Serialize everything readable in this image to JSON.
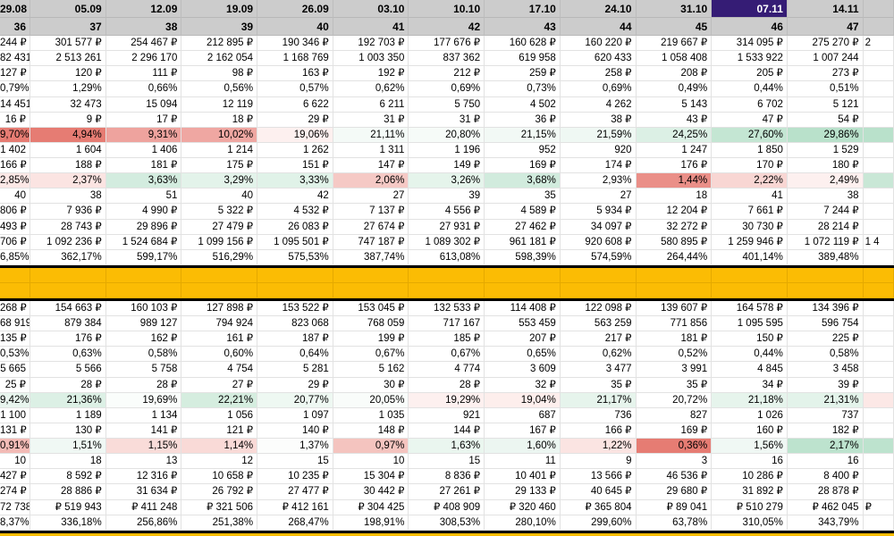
{
  "sheet": {
    "dates": [
      "29.08",
      "05.09",
      "12.09",
      "19.09",
      "26.09",
      "03.10",
      "10.10",
      "17.10",
      "24.10",
      "31.10",
      "07.11",
      "14.11",
      ""
    ],
    "weeks": [
      "36",
      "37",
      "38",
      "39",
      "40",
      "41",
      "42",
      "43",
      "44",
      "45",
      "46",
      "47",
      ""
    ],
    "selected_date_index": 10,
    "selected_color": "#351c75",
    "highlight_color": "#fbbc04",
    "top_rows": [
      [
        "244 ₽",
        "301 577 ₽",
        "254 467 ₽",
        "212 895 ₽",
        "190 346 ₽",
        "192 703 ₽",
        "177 676 ₽",
        "160 628 ₽",
        "160 220 ₽",
        "219 667 ₽",
        "314 095 ₽",
        "275 270 ₽",
        "2"
      ],
      [
        "82 431",
        "2 513 261",
        "2 296 170",
        "2 162 054",
        "1 168 769",
        "1 003 350",
        "837 362",
        "619 958",
        "620 433",
        "1 058 408",
        "1 533 922",
        "1 007 244",
        ""
      ],
      [
        "127 ₽",
        "120 ₽",
        "111 ₽",
        "98 ₽",
        "163 ₽",
        "192 ₽",
        "212 ₽",
        "259 ₽",
        "258 ₽",
        "208 ₽",
        "205 ₽",
        "273 ₽",
        ""
      ],
      [
        "0,79%",
        "1,29%",
        "0,66%",
        "0,56%",
        "0,57%",
        "0,62%",
        "0,69%",
        "0,73%",
        "0,69%",
        "0,49%",
        "0,44%",
        "0,51%",
        ""
      ],
      [
        "14 451",
        "32 473",
        "15 094",
        "12 119",
        "6 622",
        "6 211",
        "5 750",
        "4 502",
        "4 262",
        "5 143",
        "6 702",
        "5 121",
        ""
      ],
      [
        "16 ₽",
        "9 ₽",
        "17 ₽",
        "18 ₽",
        "29 ₽",
        "31 ₽",
        "31 ₽",
        "36 ₽",
        "38 ₽",
        "43 ₽",
        "47 ₽",
        "54 ₽",
        ""
      ],
      [
        "9,70%",
        "4,94%",
        "9,31%",
        "10,02%",
        "19,06%",
        "21,11%",
        "20,80%",
        "21,15%",
        "21,59%",
        "24,25%",
        "27,60%",
        "29,86%",
        ""
      ],
      [
        "1 402",
        "1 604",
        "1 406",
        "1 214",
        "1 262",
        "1 311",
        "1 196",
        "952",
        "920",
        "1 247",
        "1 850",
        "1 529",
        ""
      ],
      [
        "166 ₽",
        "188 ₽",
        "181 ₽",
        "175 ₽",
        "151 ₽",
        "147 ₽",
        "149 ₽",
        "169 ₽",
        "174 ₽",
        "176 ₽",
        "170 ₽",
        "180 ₽",
        ""
      ],
      [
        "2,85%",
        "2,37%",
        "3,63%",
        "3,29%",
        "3,33%",
        "2,06%",
        "3,26%",
        "3,68%",
        "2,93%",
        "1,44%",
        "2,22%",
        "2,49%",
        ""
      ],
      [
        "40",
        "38",
        "51",
        "40",
        "42",
        "27",
        "39",
        "35",
        "27",
        "18",
        "41",
        "38",
        ""
      ],
      [
        "806 ₽",
        "7 936 ₽",
        "4 990 ₽",
        "5 322 ₽",
        "4 532 ₽",
        "7 137 ₽",
        "4 556 ₽",
        "4 589 ₽",
        "5 934 ₽",
        "12 204 ₽",
        "7 661 ₽",
        "7 244 ₽",
        ""
      ],
      [
        "493 ₽",
        "28 743 ₽",
        "29 896 ₽",
        "27 479 ₽",
        "26 083 ₽",
        "27 674 ₽",
        "27 931 ₽",
        "27 462 ₽",
        "34 097 ₽",
        "32 272 ₽",
        "30 730 ₽",
        "28 214 ₽",
        ""
      ],
      [
        "706 ₽",
        "1 092 236 ₽",
        "1 524 684 ₽",
        "1 099 156 ₽",
        "1 095 501 ₽",
        "747 187 ₽",
        "1 089 302 ₽",
        "961 181 ₽",
        "920 608 ₽",
        "580 895 ₽",
        "1 259 946 ₽",
        "1 072 119 ₽",
        "1 4"
      ],
      [
        "6,85%",
        "362,17%",
        "599,17%",
        "516,29%",
        "575,53%",
        "387,74%",
        "613,08%",
        "598,39%",
        "574,59%",
        "264,44%",
        "401,14%",
        "389,48%",
        ""
      ]
    ],
    "top_colors": {
      "6": [
        "#e67c73",
        "#e67c73",
        "#eea39e",
        "#efa7a2",
        "#fdf0ef",
        "#f4faf7",
        "#f6fbf8",
        "#f2f9f5",
        "#eff8f3",
        "#dcf0e5",
        "#c4e6d3",
        "#b9e1cb",
        "#b9e1cb"
      ],
      "9": [
        "#fce8e6",
        "#fbe4e2",
        "#d3ecdf",
        "#e3f3ea",
        "#e0f2e8",
        "#f5c9c5",
        "#e5f4eb",
        "#d1ebdd",
        "#ffffff",
        "#ea8f88",
        "#f8d6d3",
        "#fdf0ef",
        "#c9e7d6"
      ]
    },
    "bottom_rows": [
      [
        "268 ₽",
        "154 663 ₽",
        "160 103 ₽",
        "127 898 ₽",
        "153 522 ₽",
        "153 045 ₽",
        "132 533 ₽",
        "114 408 ₽",
        "122 098 ₽",
        "139 607 ₽",
        "164 578 ₽",
        "134 396 ₽",
        ""
      ],
      [
        "68 919",
        "879 384",
        "989 127",
        "794 924",
        "823 068",
        "768 059",
        "717 167",
        "553 459",
        "563 259",
        "771 856",
        "1 095 595",
        "596 754",
        ""
      ],
      [
        "135 ₽",
        "176 ₽",
        "162 ₽",
        "161 ₽",
        "187 ₽",
        "199 ₽",
        "185 ₽",
        "207 ₽",
        "217 ₽",
        "181 ₽",
        "150 ₽",
        "225 ₽",
        ""
      ],
      [
        "0,53%",
        "0,63%",
        "0,58%",
        "0,60%",
        "0,64%",
        "0,67%",
        "0,67%",
        "0,65%",
        "0,62%",
        "0,52%",
        "0,44%",
        "0,58%",
        ""
      ],
      [
        "5 665",
        "5 566",
        "5 758",
        "4 754",
        "5 281",
        "5 162",
        "4 774",
        "3 609",
        "3 477",
        "3 991",
        "4 845",
        "3 458",
        ""
      ],
      [
        "25 ₽",
        "28 ₽",
        "28 ₽",
        "27 ₽",
        "29 ₽",
        "30 ₽",
        "28 ₽",
        "32 ₽",
        "35 ₽",
        "35 ₽",
        "34 ₽",
        "39 ₽",
        ""
      ],
      [
        "9,42%",
        "21,36%",
        "19,69%",
        "22,21%",
        "20,77%",
        "20,05%",
        "19,29%",
        "19,04%",
        "21,17%",
        "20,72%",
        "21,18%",
        "21,31%",
        ""
      ],
      [
        "1 100",
        "1 189",
        "1 134",
        "1 056",
        "1 097",
        "1 035",
        "921",
        "687",
        "736",
        "827",
        "1 026",
        "737",
        ""
      ],
      [
        "131 ₽",
        "130 ₽",
        "141 ₽",
        "121 ₽",
        "140 ₽",
        "148 ₽",
        "144 ₽",
        "167 ₽",
        "166 ₽",
        "169 ₽",
        "160 ₽",
        "182 ₽",
        ""
      ],
      [
        "0,91%",
        "1,51%",
        "1,15%",
        "1,14%",
        "1,37%",
        "0,97%",
        "1,63%",
        "1,60%",
        "1,22%",
        "0,36%",
        "1,56%",
        "2,17%",
        ""
      ],
      [
        "10",
        "18",
        "13",
        "12",
        "15",
        "10",
        "15",
        "11",
        "9",
        "3",
        "16",
        "16",
        ""
      ],
      [
        "427 ₽",
        "8 592 ₽",
        "12 316 ₽",
        "10 658 ₽",
        "10 235 ₽",
        "15 304 ₽",
        "8 836 ₽",
        "10 401 ₽",
        "13 566 ₽",
        "46 536 ₽",
        "10 286 ₽",
        "8 400 ₽",
        ""
      ],
      [
        "274 ₽",
        "28 886 ₽",
        "31 634 ₽",
        "26 792 ₽",
        "27 477 ₽",
        "30 442 ₽",
        "27 261 ₽",
        "29 133 ₽",
        "40 645 ₽",
        "29 680 ₽",
        "31 892 ₽",
        "28 878 ₽",
        ""
      ],
      [
        "72 738",
        "₽ 519 943",
        "₽ 411 248",
        "₽ 321 506",
        "₽ 412 161",
        "₽ 304 425",
        "₽ 408 909",
        "₽ 320 460",
        "₽ 365 804",
        "₽ 89 041",
        "₽ 510 279",
        "₽ 462 045",
        "₽"
      ],
      [
        "8,37%",
        "336,18%",
        "256,86%",
        "251,38%",
        "268,47%",
        "198,91%",
        "308,53%",
        "280,10%",
        "299,60%",
        "63,78%",
        "310,05%",
        "343,79%",
        ""
      ]
    ],
    "bottom_colors": {
      "6": [
        "#e8f5ee",
        "#dcf0e5",
        "#fafdfb",
        "#d5eddf",
        "#eef8f2",
        "#f9fcfa",
        "#fdf0ef",
        "#fdeeec",
        "#e6f4ec",
        "#ffffff",
        "#e6f4ec",
        "#e3f3ea",
        "#fce8e6"
      ],
      "9": [
        "#f3bbb6",
        "#f0f8f4",
        "#f9dcd9",
        "#f9dad7",
        "#fcfdfc",
        "#f4c4bf",
        "#eaf6ef",
        "#ecf6f1",
        "#fbe4e2",
        "#e67c73",
        "#f0f8f4",
        "#bde3ce",
        "#bde3ce"
      ]
    }
  }
}
